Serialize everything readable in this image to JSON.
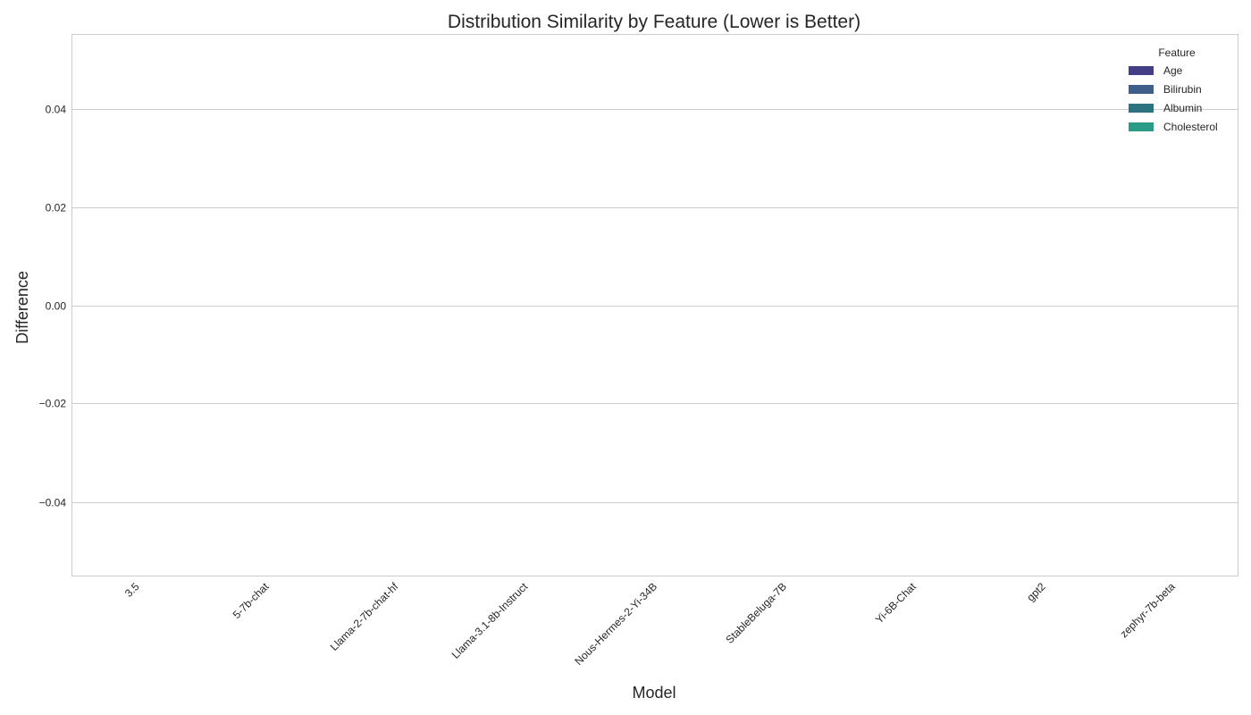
{
  "chart_data": {
    "type": "bar",
    "title": "Distribution Similarity by Feature (Lower is Better)",
    "xlabel": "Model",
    "ylabel": "Difference",
    "categories": [
      "3.5",
      "5-7b-chat",
      "Llama-2-7b-chat-hf",
      "Llama-3.1-8b-Instruct",
      "Nous-Hermes-2-Yi-34B",
      "StableBeluga-7B",
      "Yi-6B-Chat",
      "gpt2",
      "zephyr-7b-beta"
    ],
    "series": [
      {
        "name": "Age",
        "color": "#433e85",
        "values": [
          0,
          0,
          0,
          0,
          0,
          0,
          0,
          0,
          0
        ]
      },
      {
        "name": "Bilirubin",
        "color": "#3e5f8a",
        "values": [
          0,
          0,
          0,
          0,
          0,
          0,
          0,
          0,
          0
        ]
      },
      {
        "name": "Albumin",
        "color": "#2c727f",
        "values": [
          0,
          0,
          0,
          0,
          0,
          0,
          0,
          0,
          0
        ]
      },
      {
        "name": "Cholesterol",
        "color": "#2a9b87",
        "values": [
          0,
          0,
          0,
          0,
          0,
          0,
          0,
          0,
          0
        ]
      }
    ],
    "ylim": [
      -0.055,
      0.055
    ],
    "yticks": [
      -0.04,
      -0.02,
      0.0,
      0.02,
      0.04
    ],
    "ytick_labels": [
      "−0.04",
      "−0.02",
      "0.00",
      "0.02",
      "0.04"
    ],
    "grid": true,
    "legend": {
      "title": "Feature",
      "placement": "top-right"
    }
  }
}
